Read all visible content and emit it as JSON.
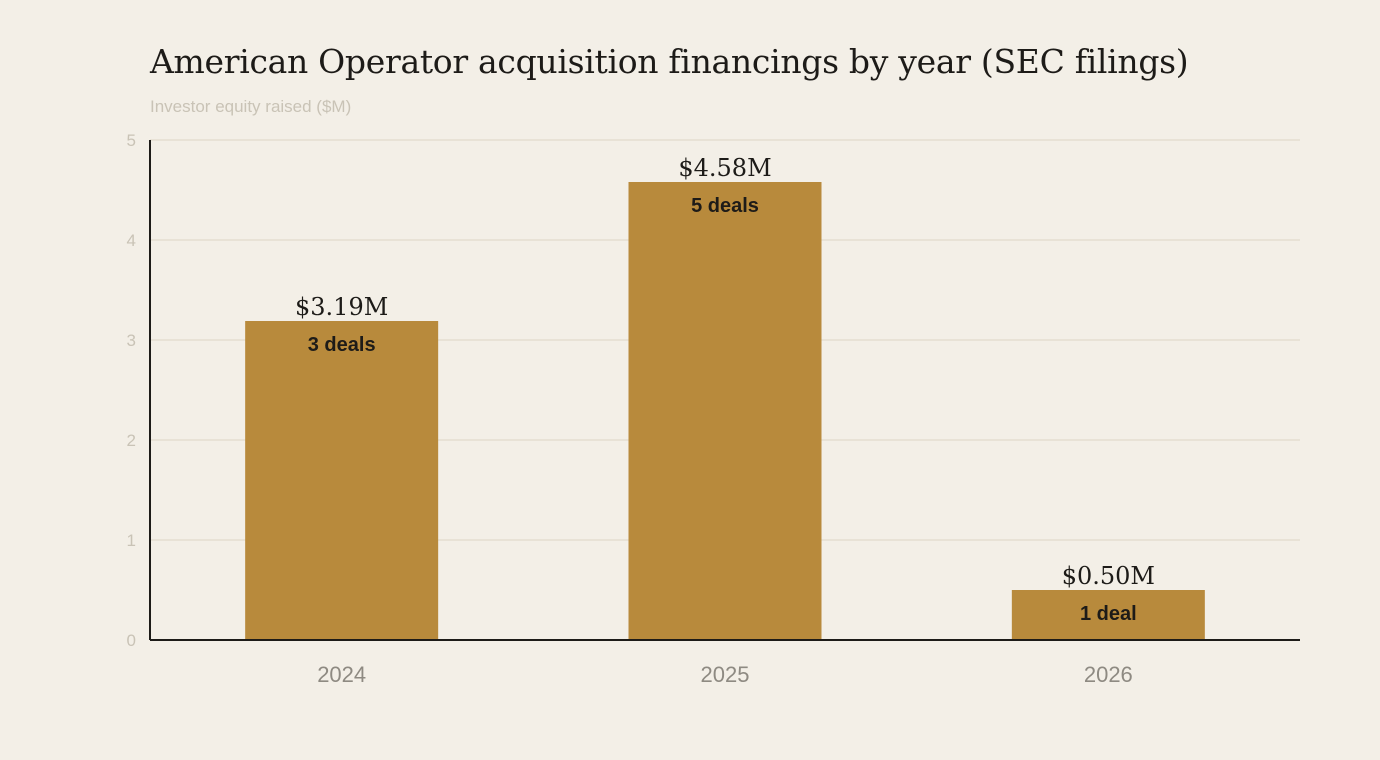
{
  "title": "American Operator acquisition financings by year (SEC filings)",
  "subtitle": "Investor equity raised ($M)",
  "colors": {
    "background": "#f3efe7",
    "bar": "#b88a3c",
    "grid": "#dcd6c4",
    "axis": "#1d1b18",
    "tick_text": "#c9c3b6",
    "category_text": "#8e8a82",
    "label_text": "#1d1b18"
  },
  "chart_data": {
    "type": "bar",
    "categories": [
      "2024",
      "2025",
      "2026"
    ],
    "values": [
      3.19,
      4.58,
      0.5
    ],
    "value_labels": [
      "$3.19M",
      "$4.58M",
      "$0.50M"
    ],
    "inner_labels": [
      "3 deals",
      "5 deals",
      "1 deal"
    ],
    "title": "American Operator acquisition financings by year (SEC filings)",
    "xlabel": "",
    "ylabel": "Investor equity raised ($M)",
    "ylim": [
      0,
      5
    ],
    "yticks": [
      0,
      1,
      2,
      3,
      4,
      5
    ],
    "grid": true,
    "legend": "none"
  }
}
